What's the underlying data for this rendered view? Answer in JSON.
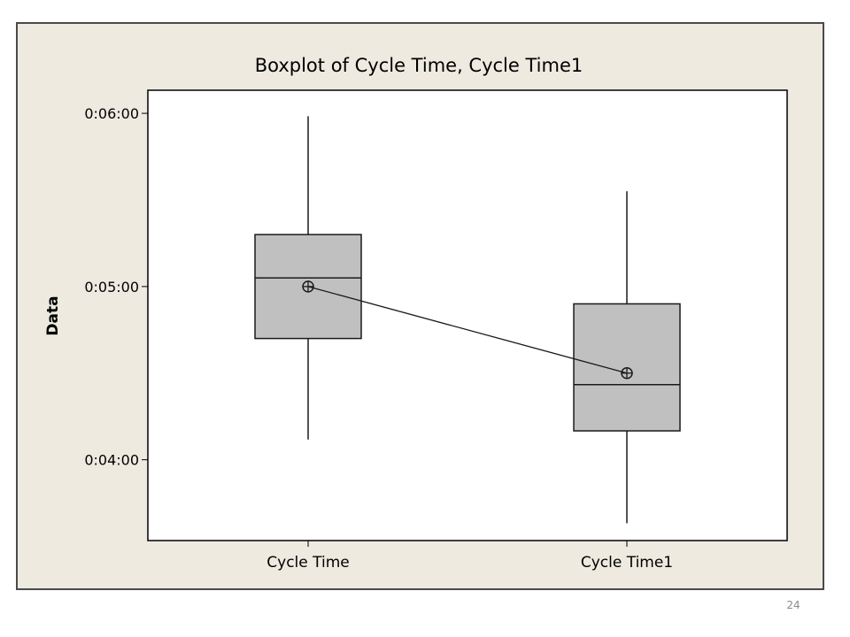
{
  "page_number": "24",
  "chart_data": {
    "type": "box",
    "title": "Boxplot of Cycle Time, Cycle Time1",
    "xlabel": "",
    "ylabel": "Data",
    "yticks": [
      "0:04:00",
      "0:05:00",
      "0:06:00"
    ],
    "ytick_seconds": [
      240,
      300,
      360
    ],
    "ylim_seconds": [
      212,
      368
    ],
    "categories": [
      "Cycle Time",
      "Cycle Time1"
    ],
    "series": [
      {
        "category": "Cycle Time",
        "min": "0:04:07",
        "q1": "0:04:42",
        "median": "0:05:03",
        "mean": "0:05:00",
        "q3": "0:05:18",
        "max": "0:05:59",
        "min_s": 247,
        "q1_s": 282,
        "median_s": 303,
        "mean_s": 300,
        "q3_s": 318,
        "max_s": 359
      },
      {
        "category": "Cycle Time1",
        "min": "0:03:38",
        "q1": "0:04:10",
        "median": "0:04:26",
        "mean": "0:04:30",
        "q3": "0:04:54",
        "max": "0:05:33",
        "min_s": 218,
        "q1_s": 250,
        "median_s": 266,
        "mean_s": 270,
        "q3_s": 294,
        "max_s": 333
      }
    ],
    "mean_connect_line": true,
    "grid": false,
    "legend": "none",
    "colors": {
      "box_fill": "#c0c0c0",
      "stroke": "#1a1a1a",
      "plot_bg": "#ffffff",
      "figure_bg": "#eeeae0"
    }
  }
}
